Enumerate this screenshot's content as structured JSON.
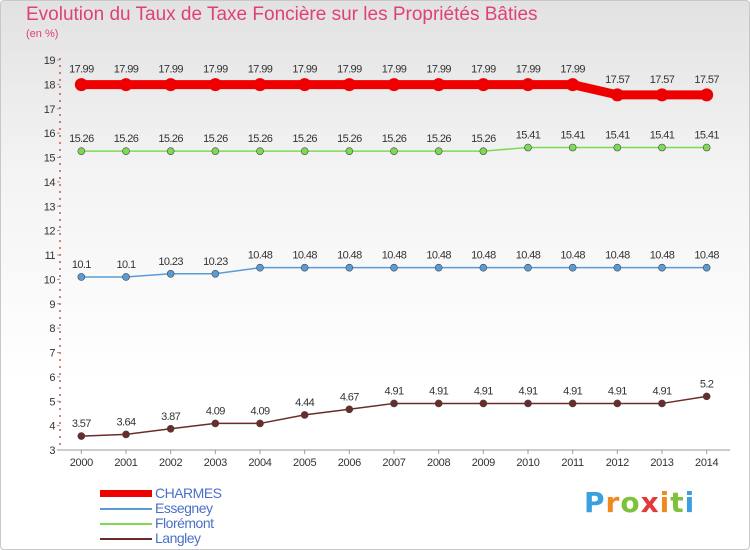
{
  "title": "Evolution du Taux de Taxe Foncière sur les Propriétés Bâties",
  "subtitle": "(en %)",
  "logo": {
    "text": "Proxiti",
    "letters": [
      "P",
      "r",
      "o",
      "x",
      "i",
      "t",
      "i"
    ]
  },
  "colors": {
    "CHARMES": "#ee0000",
    "Essegney": "#5b9bd5",
    "Florémont": "#7ed957",
    "Langley": "#6b2b2b",
    "axis": "#c00000",
    "text": "#333333"
  },
  "chart_data": {
    "type": "line",
    "x": [
      "2000",
      "2001",
      "2002",
      "2003",
      "2004",
      "2005",
      "2006",
      "2007",
      "2008",
      "2009",
      "2010",
      "2011",
      "2012",
      "2013",
      "2014"
    ],
    "ylim": [
      3,
      19
    ],
    "yticks": [
      3,
      4,
      5,
      6,
      7,
      8,
      9,
      10,
      11,
      12,
      13,
      14,
      15,
      16,
      17,
      18,
      19
    ],
    "grid": false,
    "legend_position": "bottom-left",
    "series": [
      {
        "name": "CHARMES",
        "values": [
          17.99,
          17.99,
          17.99,
          17.99,
          17.99,
          17.99,
          17.99,
          17.99,
          17.99,
          17.99,
          17.99,
          17.99,
          17.57,
          17.57,
          17.57
        ],
        "labels": [
          "17.99",
          "17.99",
          "17.99",
          "17.99",
          "17.99",
          "17.99",
          "17.99",
          "17.99",
          "17.99",
          "17.99",
          "17.99",
          "17.99",
          "17.57",
          "17.57",
          "17.57"
        ]
      },
      {
        "name": "Essegney",
        "values": [
          10.1,
          10.1,
          10.23,
          10.23,
          10.48,
          10.48,
          10.48,
          10.48,
          10.48,
          10.48,
          10.48,
          10.48,
          10.48,
          10.48,
          10.48
        ],
        "labels": [
          "10.1",
          "10.1",
          "10.23",
          "10.23",
          "10.48",
          "10.48",
          "10.48",
          "10.48",
          "10.48",
          "10.48",
          "10.48",
          "10.48",
          "10.48",
          "10.48",
          "10.48"
        ]
      },
      {
        "name": "Florémont",
        "values": [
          15.26,
          15.26,
          15.26,
          15.26,
          15.26,
          15.26,
          15.26,
          15.26,
          15.26,
          15.26,
          15.41,
          15.41,
          15.41,
          15.41,
          15.41
        ],
        "labels": [
          "15.26",
          "15.26",
          "15.26",
          "15.26",
          "15.26",
          "15.26",
          "15.26",
          "15.26",
          "15.26",
          "15.26",
          "15.41",
          "15.41",
          "15.41",
          "15.41",
          "15.41"
        ]
      },
      {
        "name": "Langley",
        "values": [
          3.57,
          3.64,
          3.87,
          4.09,
          4.09,
          4.44,
          4.67,
          4.91,
          4.91,
          4.91,
          4.91,
          4.91,
          4.91,
          4.91,
          5.2
        ],
        "labels": [
          "3.57",
          "3.64",
          "3.87",
          "4.09",
          "4.09",
          "4.44",
          "4.67",
          "4.91",
          "4.91",
          "4.91",
          "4.91",
          "4.91",
          "4.91",
          "4.91",
          "5.2"
        ]
      }
    ]
  }
}
